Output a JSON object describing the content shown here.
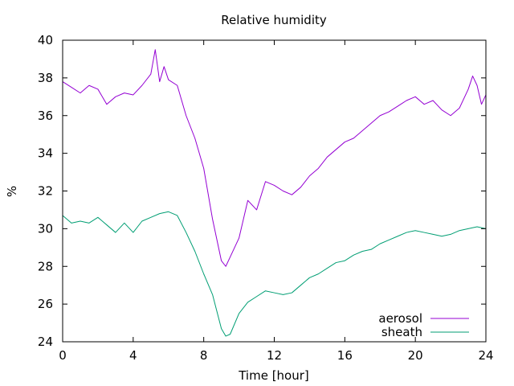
{
  "chart_data": {
    "type": "line",
    "title": "Relative humidity",
    "xlabel": "Time [hour]",
    "ylabel": "%",
    "xlim": [
      0,
      24
    ],
    "ylim": [
      24,
      40
    ],
    "xticks": [
      0,
      4,
      8,
      12,
      16,
      20,
      24
    ],
    "yticks": [
      24,
      26,
      28,
      30,
      32,
      34,
      36,
      38,
      40
    ],
    "grid": false,
    "legend_position": "bottom-right",
    "series": [
      {
        "name": "aerosol",
        "color": "#9400d3",
        "x": [
          0,
          0.5,
          1,
          1.5,
          2,
          2.5,
          3,
          3.5,
          4,
          4.5,
          5,
          5.25,
          5.5,
          5.75,
          6,
          6.5,
          7,
          7.5,
          8,
          8.5,
          9,
          9.25,
          9.5,
          10,
          10.5,
          11,
          11.5,
          12,
          12.5,
          13,
          13.5,
          14,
          14.5,
          15,
          15.5,
          16,
          16.5,
          17,
          17.5,
          18,
          18.5,
          19,
          19.5,
          20,
          20.5,
          21,
          21.5,
          22,
          22.5,
          23,
          23.25,
          23.5,
          23.75,
          24
        ],
        "y": [
          37.8,
          37.5,
          37.2,
          37.6,
          37.4,
          36.6,
          37.0,
          37.2,
          37.1,
          37.6,
          38.2,
          39.5,
          37.8,
          38.6,
          37.9,
          37.6,
          36.0,
          34.8,
          33.2,
          30.5,
          28.3,
          28.0,
          28.5,
          29.5,
          31.5,
          31.0,
          32.5,
          32.3,
          32.0,
          31.8,
          32.2,
          32.8,
          33.2,
          33.8,
          34.2,
          34.6,
          34.8,
          35.2,
          35.6,
          36.0,
          36.2,
          36.5,
          36.8,
          37.0,
          36.6,
          36.8,
          36.3,
          36.0,
          36.4,
          37.4,
          38.1,
          37.6,
          36.6,
          37.1
        ]
      },
      {
        "name": "sheath",
        "color": "#009e73",
        "x": [
          0,
          0.5,
          1,
          1.5,
          2,
          2.5,
          3,
          3.5,
          4,
          4.5,
          5,
          5.5,
          6,
          6.5,
          7,
          7.5,
          8,
          8.5,
          9,
          9.25,
          9.5,
          10,
          10.5,
          11,
          11.5,
          12,
          12.5,
          13,
          13.5,
          14,
          14.5,
          15,
          15.5,
          16,
          16.5,
          17,
          17.5,
          18,
          18.5,
          19,
          19.5,
          20,
          20.5,
          21,
          21.5,
          22,
          22.5,
          23,
          23.5,
          24
        ],
        "y": [
          30.7,
          30.3,
          30.4,
          30.3,
          30.6,
          30.2,
          29.8,
          30.3,
          29.8,
          30.4,
          30.6,
          30.8,
          30.9,
          30.7,
          29.8,
          28.8,
          27.6,
          26.5,
          24.7,
          24.3,
          24.4,
          25.5,
          26.1,
          26.4,
          26.7,
          26.6,
          26.5,
          26.6,
          27.0,
          27.4,
          27.6,
          27.9,
          28.2,
          28.3,
          28.6,
          28.8,
          28.9,
          29.2,
          29.4,
          29.6,
          29.8,
          29.9,
          29.8,
          29.7,
          29.6,
          29.7,
          29.9,
          30.0,
          30.1,
          30.0
        ]
      }
    ]
  }
}
